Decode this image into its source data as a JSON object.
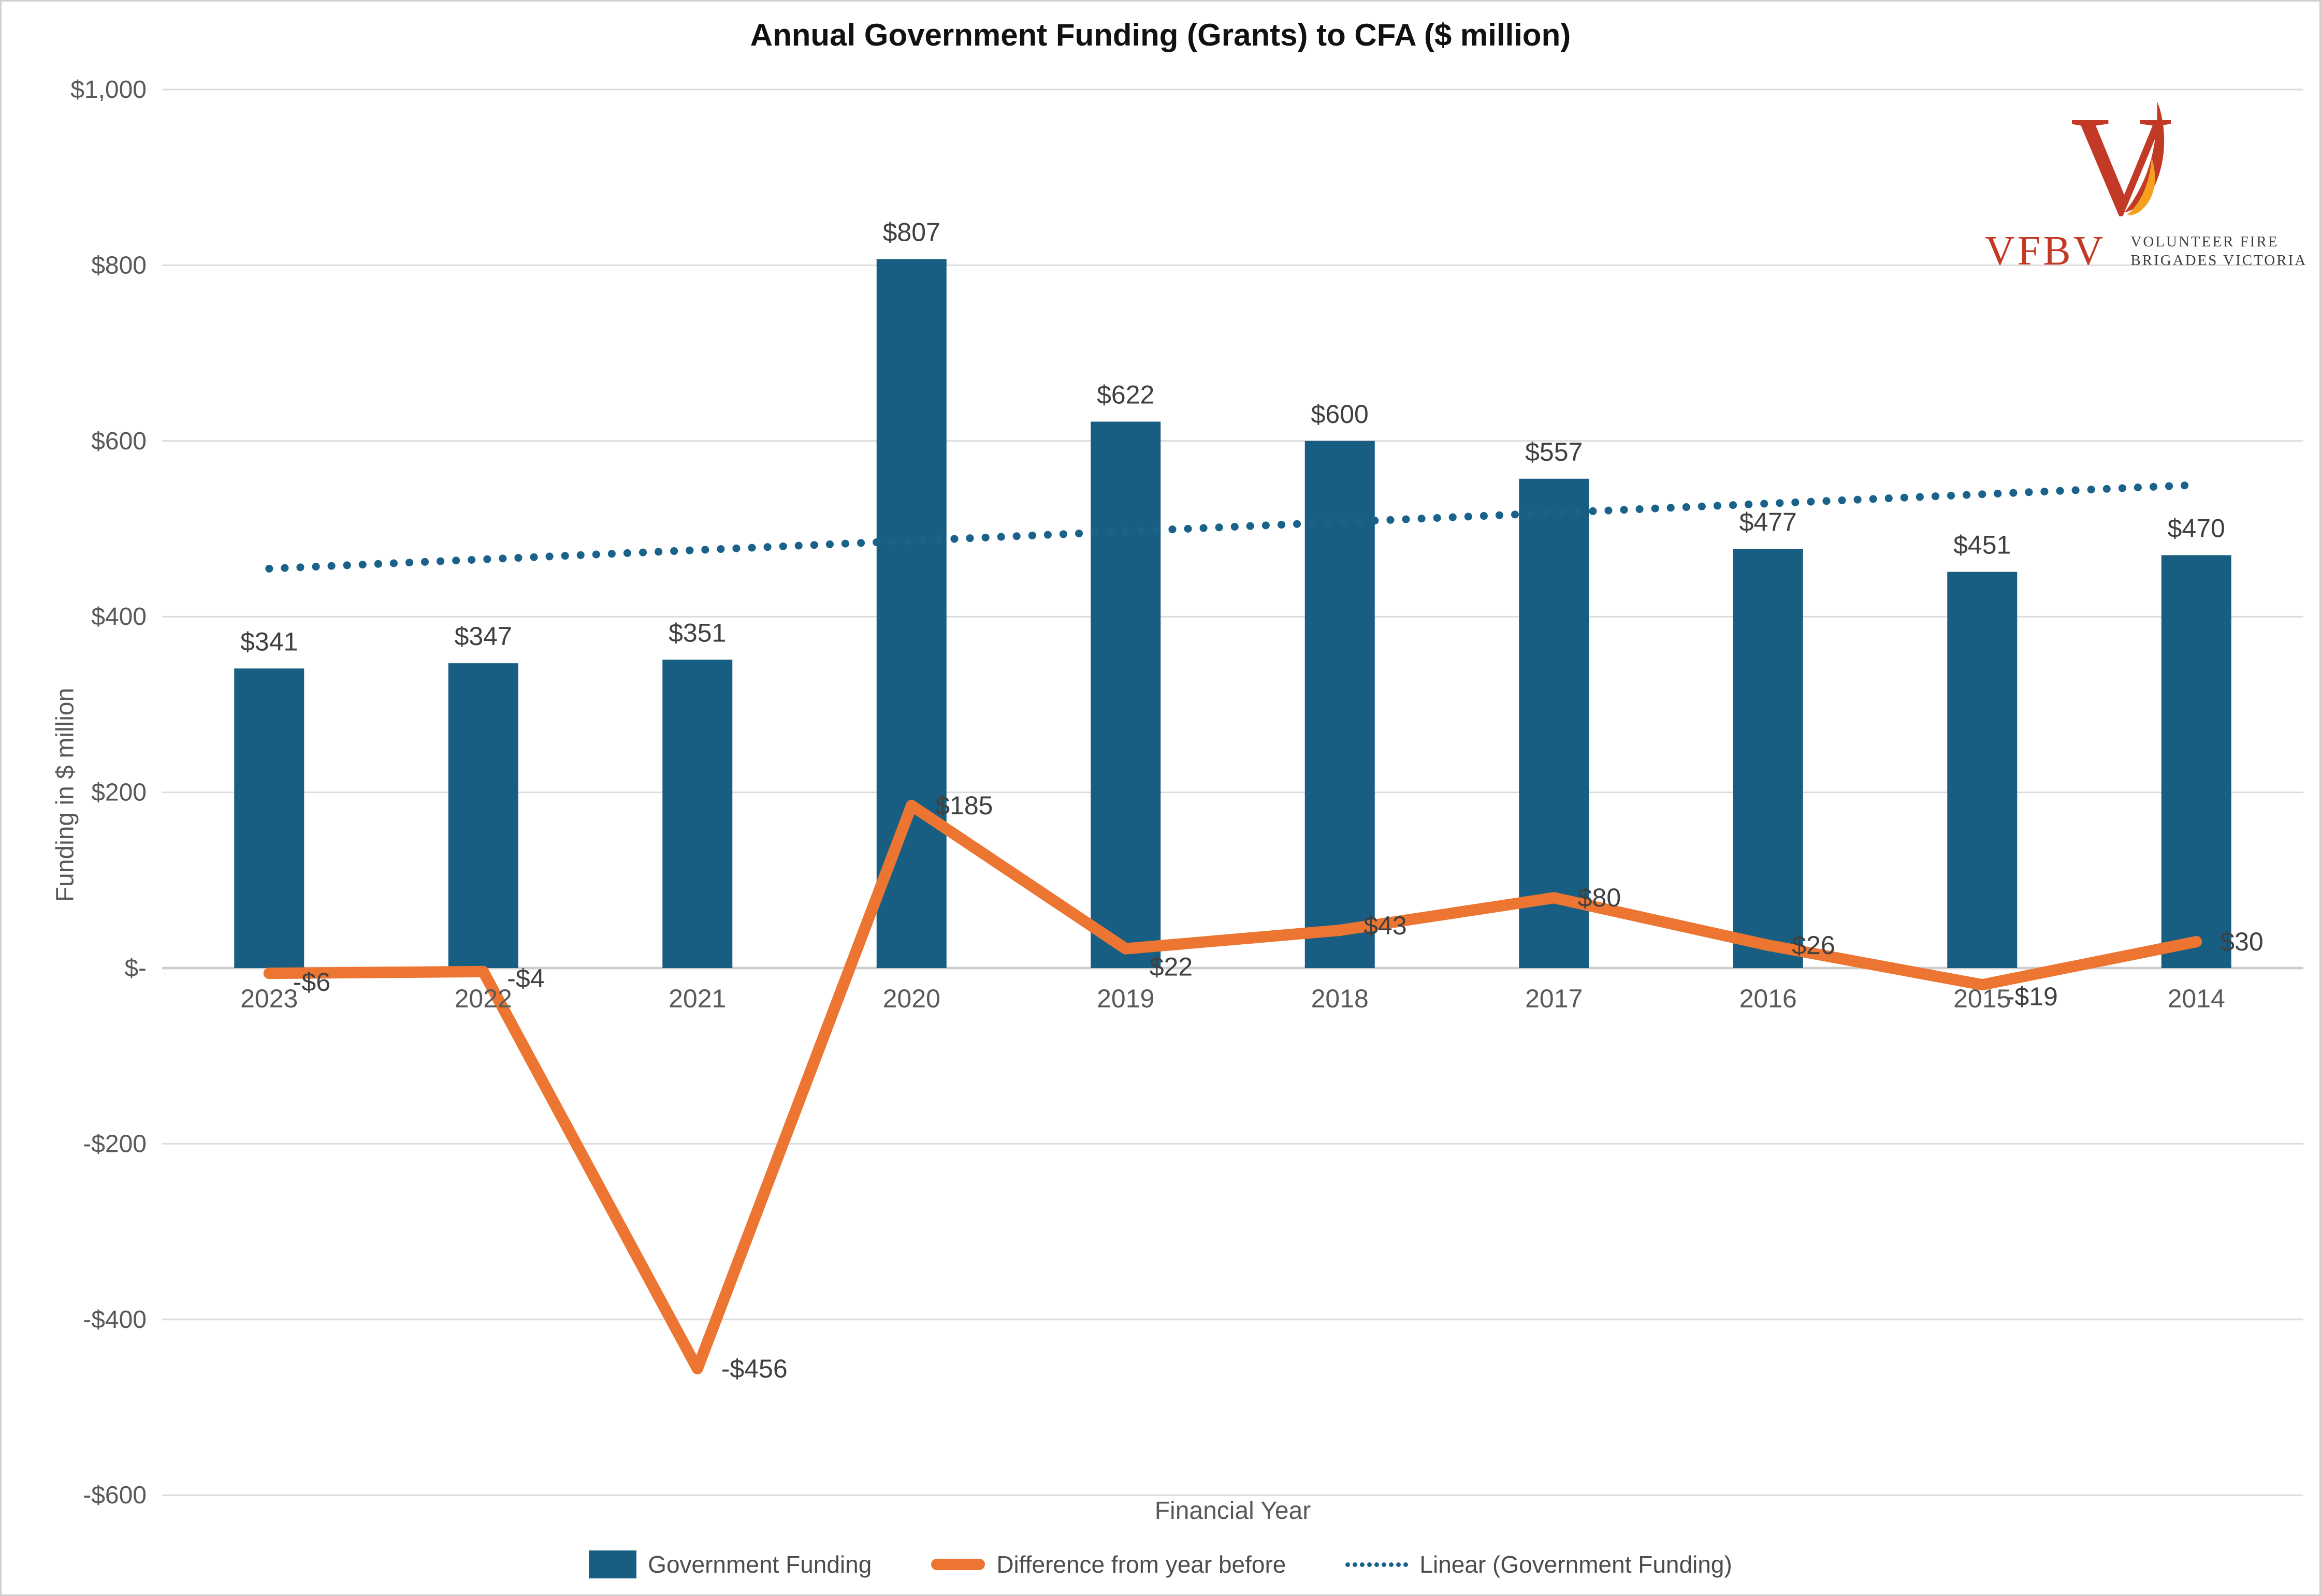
{
  "title": "Annual Government Funding (Grants) to CFA ($ million)",
  "logo": {
    "acronym": "VFBV",
    "name_line1": "VOLUNTEER FIRE",
    "name_line2": "BRIGADES VICTORIA"
  },
  "axes": {
    "y_title": "Funding in $ million",
    "x_title": "Financial Year"
  },
  "legend": [
    {
      "label": "Government Funding",
      "swatch": "bar"
    },
    {
      "label": "Difference from year before",
      "swatch": "line"
    },
    {
      "label": "Linear (Government Funding)",
      "swatch": "dotted"
    }
  ],
  "colors": {
    "bar": "#175e82",
    "line": "#ec7531",
    "trend": "#1a6289",
    "grid": "#dcdcdc",
    "zero_line": "#cfcfcf",
    "tick_text": "#595959",
    "data_label": "#404040",
    "title_text": "#111111",
    "logo_red": "#c23a26",
    "logo_amber": "#f6a01e"
  },
  "chart_data": {
    "type": "combo",
    "title": "Annual Government Funding (Grants) to CFA ($ million)",
    "xlabel": "Financial Year",
    "ylabel": "Funding in $ million",
    "categories": [
      "2023",
      "2022",
      "2021",
      "2020",
      "2019",
      "2018",
      "2017",
      "2016",
      "2015",
      "2014"
    ],
    "series": [
      {
        "name": "Government Funding",
        "chart_type": "bar",
        "values": [
          341,
          347,
          351,
          807,
          622,
          600,
          557,
          477,
          451,
          470
        ],
        "data_labels": [
          "$341",
          "$347",
          "$351",
          "$807",
          "$622",
          "$600",
          "$557",
          "$477",
          "$451",
          "$470"
        ]
      },
      {
        "name": "Difference from year before",
        "chart_type": "line",
        "values": [
          -6,
          -4,
          -456,
          185,
          22,
          43,
          80,
          26,
          -19,
          30
        ],
        "data_labels": [
          "-$6",
          "-$4",
          "-$456",
          "$185",
          "$22",
          "$43",
          "$80",
          "$26",
          "-$19",
          "$30"
        ]
      },
      {
        "name": "Linear (Government Funding)",
        "chart_type": "trendline",
        "derived_from": "Government Funding"
      }
    ],
    "ylim": [
      -600,
      1000
    ],
    "y_ticks": [
      {
        "value": 1000,
        "label": "$1,000"
      },
      {
        "value": 800,
        "label": "$800"
      },
      {
        "value": 600,
        "label": "$600"
      },
      {
        "value": 400,
        "label": "$400"
      },
      {
        "value": 200,
        "label": "$200"
      },
      {
        "value": 0,
        "label": "$-"
      },
      {
        "value": -200,
        "label": "-$200"
      },
      {
        "value": -400,
        "label": "-$400"
      },
      {
        "value": -600,
        "label": "-$600"
      }
    ],
    "grid": true,
    "legend_position": "bottom"
  }
}
